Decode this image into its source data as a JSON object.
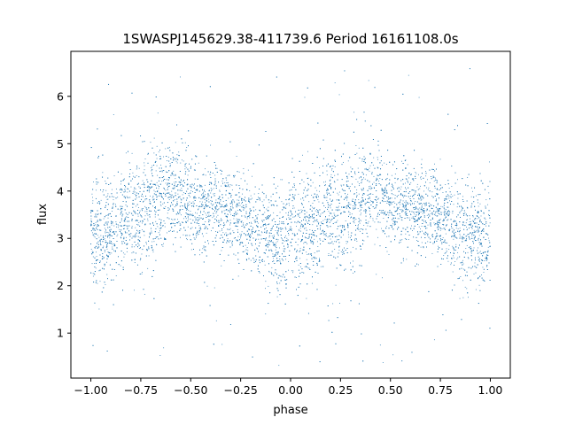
{
  "chart_data": {
    "type": "scatter",
    "title": "1SWASPJ145629.38-411739.6 Period 16161108.0s",
    "xlabel": "phase",
    "ylabel": "flux",
    "xlim": [
      -1.1,
      1.1
    ],
    "ylim": [
      0.05,
      6.95
    ],
    "xticks": [
      -1.0,
      -0.75,
      -0.5,
      -0.25,
      0.0,
      0.25,
      0.5,
      0.75,
      1.0
    ],
    "xtick_labels": [
      "−1.00",
      "−0.75",
      "−0.50",
      "−0.25",
      "0.00",
      "0.25",
      "0.50",
      "0.75",
      "1.00"
    ],
    "yticks": [
      1,
      2,
      3,
      4,
      5,
      6
    ],
    "ytick_labels": [
      "1",
      "2",
      "3",
      "4",
      "5",
      "6"
    ],
    "grid": false,
    "marker_color": "#1f77b4",
    "series": [
      {
        "profile": [
          {
            "phase": -1.0,
            "center": 3.1,
            "spread": 0.55
          },
          {
            "phase": -0.95,
            "center": 3.0,
            "spread": 0.6
          },
          {
            "phase": -0.9,
            "center": 3.2,
            "spread": 0.55
          },
          {
            "phase": -0.85,
            "center": 3.4,
            "spread": 0.55
          },
          {
            "phase": -0.8,
            "center": 3.55,
            "spread": 0.55
          },
          {
            "phase": -0.75,
            "center": 3.5,
            "spread": 0.6
          },
          {
            "phase": -0.7,
            "center": 3.7,
            "spread": 0.6
          },
          {
            "phase": -0.65,
            "center": 3.85,
            "spread": 0.55
          },
          {
            "phase": -0.6,
            "center": 4.0,
            "spread": 0.5
          },
          {
            "phase": -0.55,
            "center": 3.9,
            "spread": 0.5
          },
          {
            "phase": -0.5,
            "center": 3.7,
            "spread": 0.45
          },
          {
            "phase": -0.45,
            "center": 3.55,
            "spread": 0.45
          },
          {
            "phase": -0.4,
            "center": 3.75,
            "spread": 0.45
          },
          {
            "phase": -0.35,
            "center": 3.6,
            "spread": 0.45
          },
          {
            "phase": -0.3,
            "center": 3.55,
            "spread": 0.45
          },
          {
            "phase": -0.25,
            "center": 3.45,
            "spread": 0.45
          },
          {
            "phase": -0.2,
            "center": 3.25,
            "spread": 0.5
          },
          {
            "phase": -0.15,
            "center": 3.15,
            "spread": 0.5
          },
          {
            "phase": -0.1,
            "center": 3.05,
            "spread": 0.5
          },
          {
            "phase": -0.05,
            "center": 3.0,
            "spread": 0.5
          },
          {
            "phase": 0.0,
            "center": 3.1,
            "spread": 0.55
          },
          {
            "phase": 0.05,
            "center": 3.0,
            "spread": 0.6
          },
          {
            "phase": 0.1,
            "center": 3.2,
            "spread": 0.55
          },
          {
            "phase": 0.15,
            "center": 3.4,
            "spread": 0.55
          },
          {
            "phase": 0.2,
            "center": 3.55,
            "spread": 0.55
          },
          {
            "phase": 0.25,
            "center": 3.5,
            "spread": 0.6
          },
          {
            "phase": 0.3,
            "center": 3.7,
            "spread": 0.6
          },
          {
            "phase": 0.35,
            "center": 3.85,
            "spread": 0.55
          },
          {
            "phase": 0.4,
            "center": 4.0,
            "spread": 0.5
          },
          {
            "phase": 0.45,
            "center": 3.9,
            "spread": 0.5
          },
          {
            "phase": 0.5,
            "center": 3.7,
            "spread": 0.45
          },
          {
            "phase": 0.55,
            "center": 3.55,
            "spread": 0.45
          },
          {
            "phase": 0.6,
            "center": 3.75,
            "spread": 0.45
          },
          {
            "phase": 0.65,
            "center": 3.6,
            "spread": 0.45
          },
          {
            "phase": 0.7,
            "center": 3.55,
            "spread": 0.45
          },
          {
            "phase": 0.75,
            "center": 3.45,
            "spread": 0.45
          },
          {
            "phase": 0.8,
            "center": 3.25,
            "spread": 0.5
          },
          {
            "phase": 0.85,
            "center": 3.15,
            "spread": 0.5
          },
          {
            "phase": 0.9,
            "center": 3.05,
            "spread": 0.5
          },
          {
            "phase": 0.95,
            "center": 3.0,
            "spread": 0.5
          },
          {
            "phase": 1.0,
            "center": 3.1,
            "spread": 0.55
          }
        ]
      }
    ]
  }
}
